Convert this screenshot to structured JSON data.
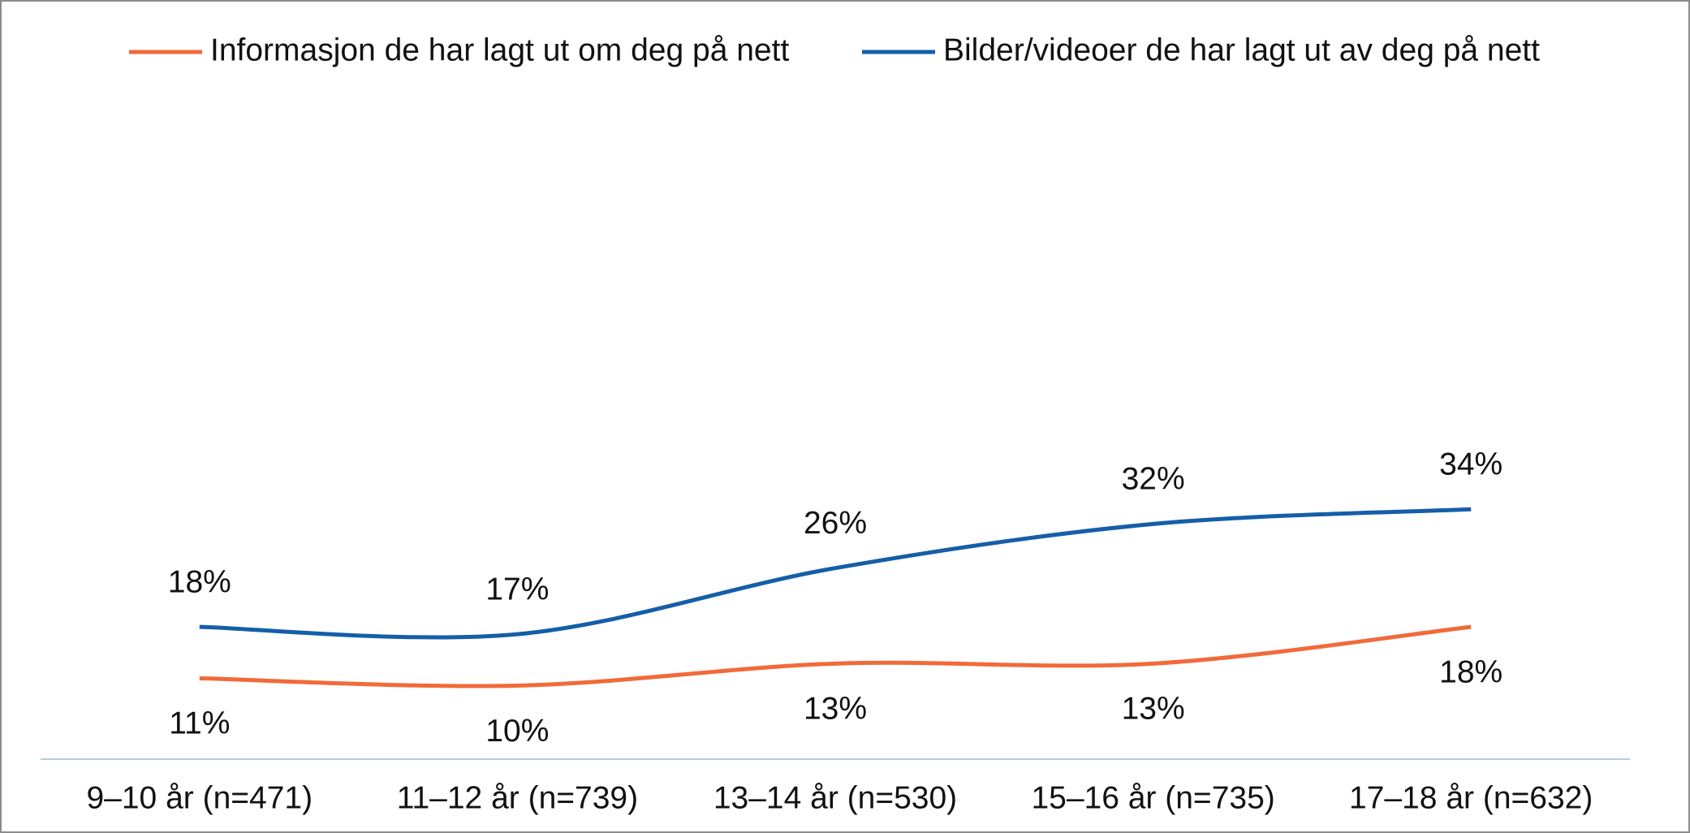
{
  "chart_data": {
    "type": "line",
    "categories": [
      "9–10 år (n=471)",
      "11–12 år (n=739)",
      "13–14 år (n=530)",
      "15–16 år (n=735)",
      "17–18 år (n=632)"
    ],
    "series": [
      {
        "name": "Informasjon de har lagt ut om deg på nett",
        "color": "#f26a3a",
        "values": [
          11,
          10,
          13,
          13,
          18
        ],
        "value_labels": [
          "11%",
          "10%",
          "13%",
          "13%",
          "18%"
        ]
      },
      {
        "name": "Bilder/videoer de har lagt ut av deg på nett",
        "color": "#155ea8",
        "values": [
          18,
          17,
          26,
          32,
          34
        ],
        "value_labels": [
          "18%",
          "17%",
          "26%",
          "32%",
          "34%"
        ]
      }
    ],
    "legend": "top",
    "smooth": true
  }
}
